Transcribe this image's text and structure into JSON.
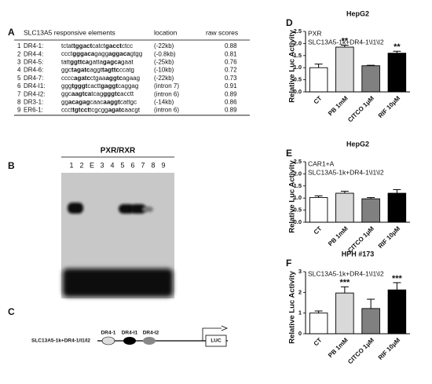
{
  "table": {
    "panel_label": "A",
    "header": [
      "SLC13A5 responsive elements",
      "location",
      "raw scores"
    ],
    "rows": [
      {
        "index": 1,
        "element": "DR4-1:",
        "sequence": [
          "tctat",
          "tggact",
          "catct",
          "gacct",
          "ctcc"
        ],
        "location": "(-22kb)",
        "score": 0.88
      },
      {
        "index": 2,
        "element": "DR4-4:",
        "sequence": [
          "ccct",
          "gggaca",
          "gagg",
          "aggaca",
          "gtgg"
        ],
        "location": "(-0.8kb)",
        "score": 0.81
      },
      {
        "index": 3,
        "element": "DR4-5:",
        "sequence": [
          "tatt",
          "ggttca",
          "gatta",
          "gagca",
          "gaat"
        ],
        "location": "(-25kb)",
        "score": 0.76
      },
      {
        "index": 4,
        "element": "DR4-6:",
        "sequence": [
          "ggc",
          "tagatc",
          "aggt",
          "tagttc",
          "ccatg"
        ],
        "location": "(-10kb)",
        "score": 0.72
      },
      {
        "index": 5,
        "element": "DR4-7:",
        "sequence": [
          "cccc",
          "agatc",
          "ctgaa",
          "aggtc",
          "agaag"
        ],
        "location": "(-22kb)",
        "score": 0.73
      },
      {
        "index": 6,
        "element": "DR4-I1:",
        "sequence": [
          "ggg",
          "tgggt",
          "cactt",
          "gaggt",
          "caggag"
        ],
        "location": "(intron 7)",
        "score": 0.91
      },
      {
        "index": 7,
        "element": "DR4-I2:",
        "sequence": [
          "ggc",
          "aagtca",
          "tcag",
          "gggtc",
          "acctt"
        ],
        "location": "(intron 6)",
        "score": 0.89
      },
      {
        "index": 8,
        "element": "DR3-1:",
        "sequence": [
          "gg",
          "acagag",
          "caac",
          "aaggt",
          "cattgc"
        ],
        "location": "(-14kb)",
        "score": 0.86
      },
      {
        "index": 9,
        "element": "ER6-1:",
        "sequence": [
          "ccct",
          "tgtcct",
          "tcgcgg",
          "agatc",
          "aacgt"
        ],
        "location": "(intron 6)",
        "score": 0.89
      }
    ]
  },
  "gel": {
    "panel_label": "B",
    "title": "PXR/RXR",
    "lanes": [
      "1",
      "2",
      "E",
      "3",
      "4",
      "5",
      "6",
      "7",
      "8",
      "9"
    ]
  },
  "diagram": {
    "panel_label": "C",
    "construct": "SLC13A5-1k+DR4-1/I1/I2",
    "elements": [
      "DR4-1",
      "DR4-I1",
      "DR4-I2"
    ],
    "reporter": "LUC"
  },
  "chart_data": [
    {
      "type": "bar",
      "panel_label": "D",
      "title": "HepG2",
      "annotations": [
        "PXR",
        "SLC13A5-1k+DR4-1\\I1\\I2"
      ],
      "ylabel": "Relative Luc Activity",
      "categories": [
        "CT",
        "PB 1mM",
        "CITCO 1μM",
        "RIF 10μM"
      ],
      "values": [
        1.0,
        1.85,
        1.08,
        1.6
      ],
      "errors": [
        0.15,
        0.08,
        0.02,
        0.08
      ],
      "significance": [
        null,
        "**",
        null,
        "**"
      ],
      "colors": [
        "#ffffff",
        "#d9d9d9",
        "#808080",
        "#000000"
      ],
      "ylim": [
        0,
        2.5
      ],
      "yticks": [
        {
          "value": 0,
          "label": "0.0"
        },
        0.5,
        {
          "value": 1,
          "label": "1.0"
        },
        1.5,
        {
          "value": 2,
          "label": "2.0"
        },
        2.5
      ]
    },
    {
      "type": "bar",
      "panel_label": "E",
      "title": "HepG2",
      "annotations": [
        "CAR1+A",
        "SLC13A5-1k+DR4-1\\I1\\I2"
      ],
      "ylabel": "Relative Luc Activity",
      "categories": [
        "CT",
        "PB 1mM",
        "CITCO 1μM",
        "RIF 10μM"
      ],
      "values": [
        1.02,
        1.2,
        0.97,
        1.2
      ],
      "errors": [
        0.07,
        0.08,
        0.05,
        0.15
      ],
      "significance": [
        null,
        null,
        null,
        null
      ],
      "colors": [
        "#ffffff",
        "#d9d9d9",
        "#808080",
        "#000000"
      ],
      "ylim": [
        0,
        2.5
      ],
      "yticks": [
        {
          "value": 0,
          "label": "0.0"
        },
        0.5,
        {
          "value": 1,
          "label": "1.0"
        },
        1.5,
        {
          "value": 2,
          "label": "2.0"
        },
        2.5
      ]
    },
    {
      "type": "bar",
      "panel_label": "F",
      "title": "HPH #173",
      "annotations": [
        "SLC13A5-1k+DR4-1\\I1\\I2"
      ],
      "ylabel": "Relative Luc Activity",
      "categories": [
        "CT",
        "PB 1mM",
        "CITCO 1μM",
        "RIF 10μM"
      ],
      "values": [
        1.0,
        1.97,
        1.22,
        2.12
      ],
      "errors": [
        0.1,
        0.3,
        0.45,
        0.35
      ],
      "significance": [
        null,
        "***",
        null,
        "***"
      ],
      "colors": [
        "#ffffff",
        "#d9d9d9",
        "#808080",
        "#000000"
      ],
      "ylim": [
        0,
        3
      ],
      "yticks": [
        0,
        1,
        2,
        3
      ]
    }
  ]
}
